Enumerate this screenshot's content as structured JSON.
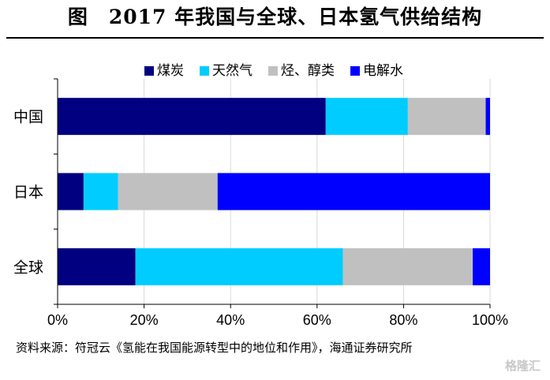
{
  "title": "图　2017 年我国与全球、日本氢气供给结构",
  "source": "资料来源：符冠云《氢能在我国能源转型中的地位和作用》，海通证券研究所",
  "watermark": "格隆汇",
  "chart_data": {
    "type": "bar",
    "orientation": "horizontal",
    "stacked": true,
    "categories": [
      "中国",
      "日本",
      "全球"
    ],
    "series": [
      {
        "name": "煤炭",
        "color": "#000080",
        "values": [
          62,
          6,
          18
        ]
      },
      {
        "name": "天然气",
        "color": "#00ccff",
        "values": [
          19,
          8,
          48
        ]
      },
      {
        "name": "烃、醇类",
        "color": "#c0c0c0",
        "values": [
          18,
          23,
          30
        ]
      },
      {
        "name": "电解水",
        "color": "#0000ff",
        "values": [
          1,
          63,
          4
        ]
      }
    ],
    "x_ticks": [
      "0%",
      "20%",
      "40%",
      "60%",
      "80%",
      "100%"
    ],
    "xlim": [
      0,
      100
    ],
    "grid": true,
    "legend_position": "top"
  }
}
